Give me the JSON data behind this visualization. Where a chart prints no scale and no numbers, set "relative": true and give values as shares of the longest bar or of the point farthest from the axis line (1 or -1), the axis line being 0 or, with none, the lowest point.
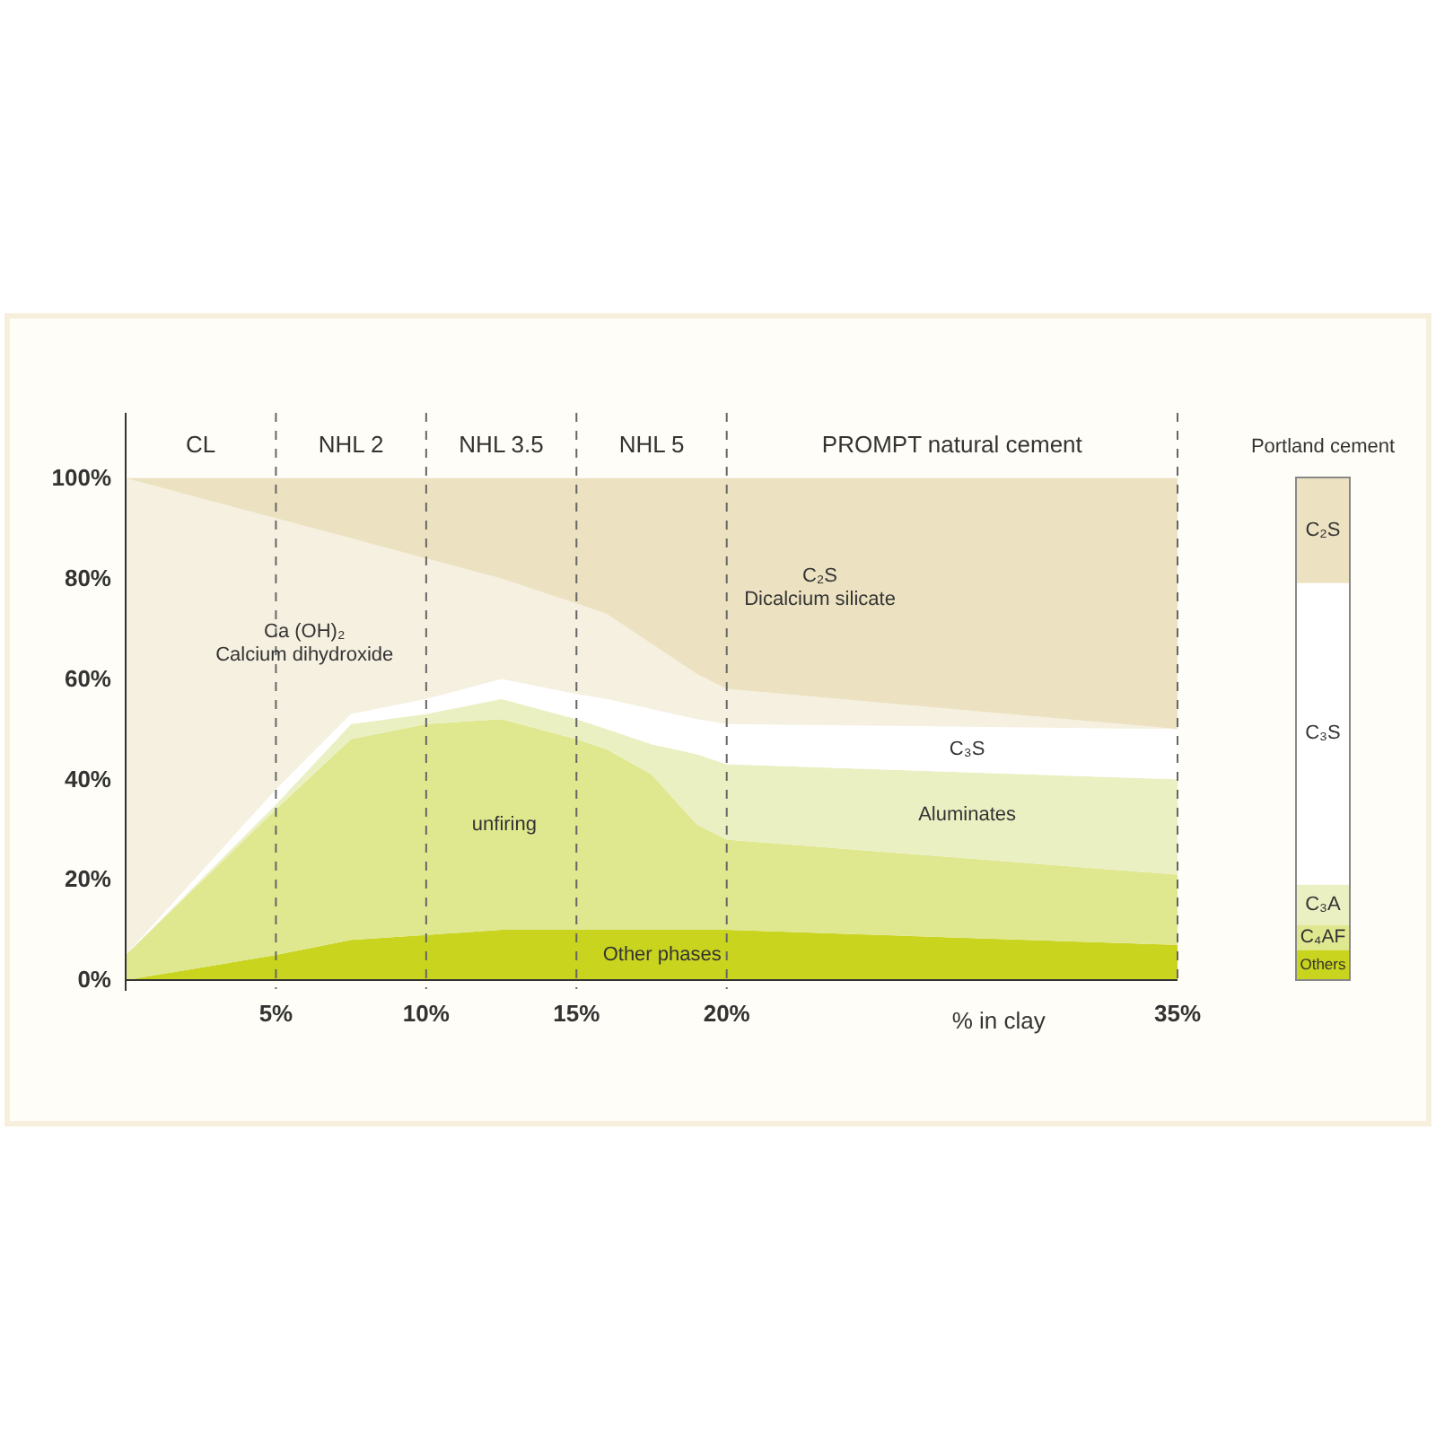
{
  "chart_data": [
    {
      "type": "area",
      "stacked": true,
      "x": [
        0,
        5,
        7.5,
        10,
        12.5,
        15,
        16,
        17.5,
        19,
        20,
        35
      ],
      "xlim": [
        0,
        35
      ],
      "xticks": [
        {
          "value": 5,
          "label": "5%"
        },
        {
          "value": 10,
          "label": "10%"
        },
        {
          "value": 15,
          "label": "15%"
        },
        {
          "value": 20,
          "label": "20%"
        },
        {
          "value": 35,
          "label": "35%"
        }
      ],
      "ylim": [
        0,
        113
      ],
      "yticks": [
        {
          "value": 0,
          "label": "0%"
        },
        {
          "value": 20,
          "label": "20%"
        },
        {
          "value": 40,
          "label": "40%"
        },
        {
          "value": 60,
          "label": "60%"
        },
        {
          "value": 80,
          "label": "80%"
        },
        {
          "value": 100,
          "label": "100%"
        }
      ],
      "xlabel": "% in clay",
      "ref_lines": [
        {
          "axis": "x",
          "value": 5,
          "line_style": "dashed"
        },
        {
          "axis": "x",
          "value": 10,
          "line_style": "dashed"
        },
        {
          "axis": "x",
          "value": 15,
          "line_style": "dashed"
        },
        {
          "axis": "x",
          "value": 20,
          "line_style": "dashed"
        }
      ],
      "annotations": [
        "CL",
        "NHL 2",
        "NHL 3.5",
        "NHL 5",
        "PROMPT natural cement"
      ],
      "series": [
        {
          "name": "Other phases",
          "color": "#c9d41f",
          "values": [
            0,
            5,
            8,
            9,
            10,
            10,
            10,
            10,
            10,
            10,
            7
          ]
        },
        {
          "name": "unfiring",
          "color": "#dfe78f",
          "values": [
            5,
            29,
            40,
            42,
            42,
            38,
            36,
            31,
            21,
            18,
            14
          ]
        },
        {
          "name": "Aluminates",
          "color": "#ebf0c3",
          "values": [
            0,
            1,
            3,
            2,
            4,
            4,
            4,
            6,
            14,
            15,
            19
          ]
        },
        {
          "name": "C₃S",
          "color": "#ffffff",
          "values": [
            0,
            3,
            2,
            3,
            4,
            5,
            6,
            7,
            7,
            8,
            10
          ]
        },
        {
          "name": "Ca (OH)₂\nCalcium dihydroxide",
          "color": "#f6f0e1",
          "values": [
            95,
            54,
            35,
            28,
            20,
            18,
            17,
            13,
            9,
            7,
            0
          ]
        },
        {
          "name": "C₂S\nDicalcium silicate",
          "color": "#ece2c1",
          "values": [
            0,
            8,
            12,
            16,
            20,
            25,
            27,
            33,
            39,
            42,
            50
          ]
        }
      ]
    },
    {
      "type": "bar",
      "stacked": true,
      "relative": true,
      "title": "Portland cement",
      "categories": [
        null
      ],
      "series": [
        {
          "name": "Others",
          "color": "#c9d41f",
          "values": [
            0.06
          ]
        },
        {
          "name": "C₄AF",
          "color": "#dfe78f",
          "values": [
            0.05
          ]
        },
        {
          "name": "C₃A",
          "color": "#ebf0c3",
          "values": [
            0.08
          ]
        },
        {
          "name": "C₃S",
          "color": "#ffffff",
          "values": [
            0.6
          ]
        },
        {
          "name": "C₂S",
          "color": "#ece2c1",
          "values": [
            0.21
          ]
        }
      ]
    }
  ]
}
